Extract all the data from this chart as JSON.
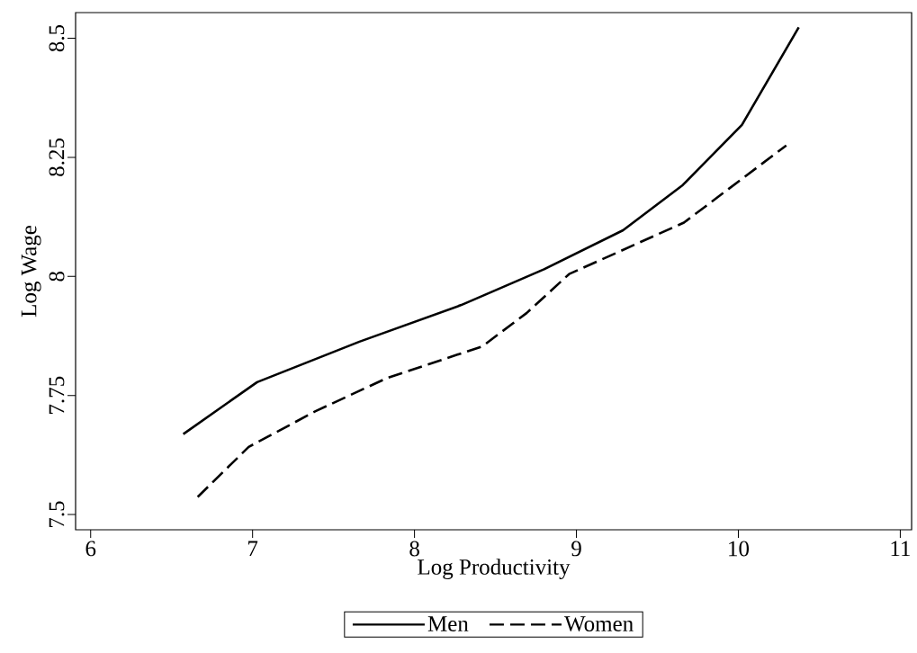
{
  "chart_data": {
    "type": "line",
    "xlabel": "Log Productivity",
    "ylabel": "Log Wage",
    "xlim": [
      5.907,
      11.07
    ],
    "ylim": [
      7.468,
      8.554
    ],
    "xticks": [
      6,
      7,
      8,
      9,
      10,
      11
    ],
    "yticks": [
      7.5,
      7.75,
      8,
      8.25,
      8.5
    ],
    "grid": false,
    "legend": "bottom",
    "marker": "none",
    "series": [
      {
        "name": "Men",
        "color": "#000000",
        "line_style": "solid",
        "x": [
          6.572,
          7.028,
          7.66,
          8.289,
          8.8,
          9.288,
          9.657,
          10.022,
          10.373
        ],
        "values": [
          7.669,
          7.778,
          7.863,
          7.94,
          8.015,
          8.097,
          8.192,
          8.318,
          8.523
        ]
      },
      {
        "name": "Women",
        "color": "#000000",
        "line_style": "dashed",
        "x": [
          6.661,
          6.976,
          7.389,
          7.833,
          8.418,
          8.692,
          8.955,
          9.664,
          10.296
        ],
        "values": [
          7.537,
          7.642,
          7.717,
          7.787,
          7.853,
          7.923,
          8.005,
          8.113,
          8.275
        ]
      }
    ]
  }
}
